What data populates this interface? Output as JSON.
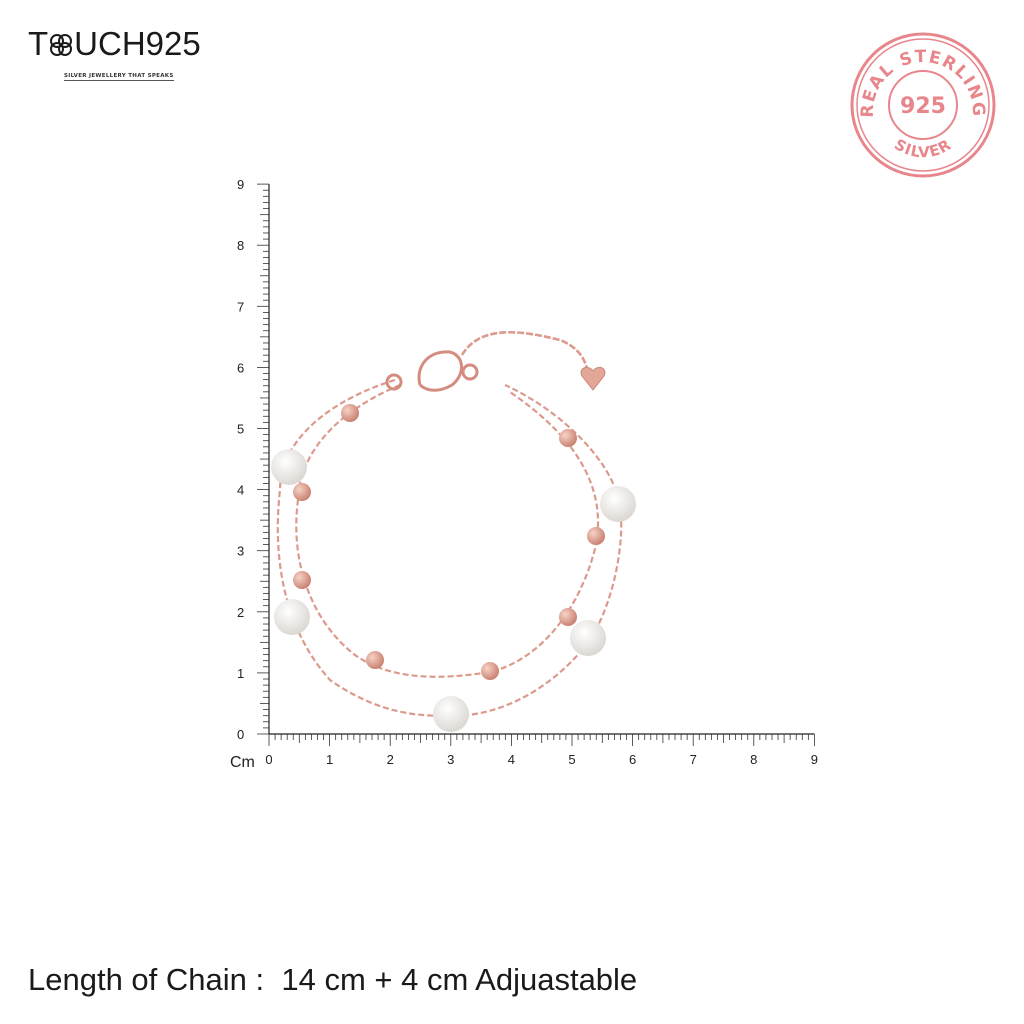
{
  "brand": {
    "logo_text": "TOUCH925",
    "tagline": "SILVER JEWELLERY THAT SPEAKS"
  },
  "stamp": {
    "top_text": "REAL STERLING",
    "center_text": "925",
    "bottom_text": "SILVER",
    "color": "#e8868c"
  },
  "ruler": {
    "unit": "Cm",
    "x_labels": [
      "0",
      "1",
      "2",
      "3",
      "4",
      "5",
      "6",
      "7",
      "8",
      "9"
    ],
    "y_labels": [
      "0",
      "1",
      "2",
      "3",
      "4",
      "5",
      "6",
      "7",
      "8",
      "9"
    ],
    "range_cm": [
      0,
      9
    ]
  },
  "product": {
    "metal_color": "#e0a090",
    "pearl_color": "#f4f2ef"
  },
  "caption": "Length of Chain :  14 cm + 4 cm Adjuastable"
}
